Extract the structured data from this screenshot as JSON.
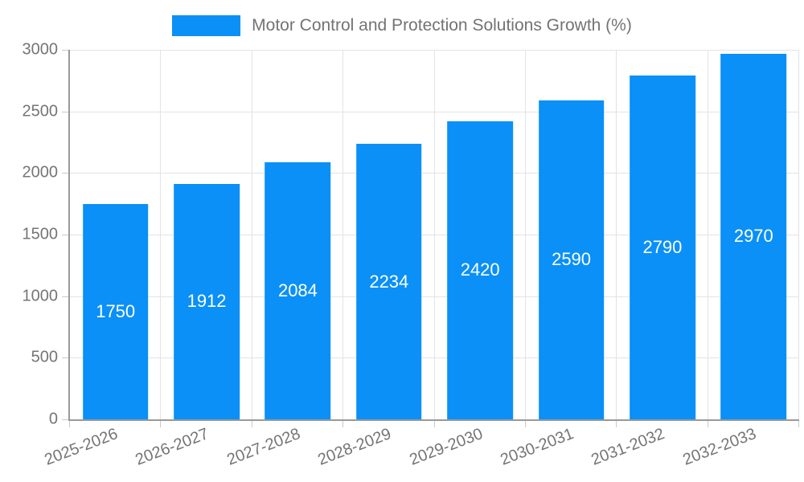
{
  "chart_data": {
    "type": "bar",
    "title": "Motor Control and Protection Solutions Growth (%)",
    "categories": [
      "2025-2026",
      "2026-2027",
      "2027-2028",
      "2028-2029",
      "2029-2030",
      "2030-2031",
      "2031-2032",
      "2032-2033"
    ],
    "values": [
      1750,
      1912,
      2084,
      2234,
      2420,
      2590,
      2790,
      2970
    ],
    "xlabel": "",
    "ylabel": "",
    "ylim": [
      0,
      3000
    ],
    "yticks": [
      0,
      500,
      1000,
      1500,
      2000,
      2500,
      3000
    ],
    "legend": {
      "label": "Motor Control and Protection Solutions Growth (%)",
      "position": "top"
    },
    "grid": true,
    "bar_width_fraction": 0.72,
    "x_label_rotation_deg": -21,
    "colors": {
      "bar": "#0a90f7",
      "bar_label": "#ffffff",
      "axis_text": "#757575",
      "legend_text": "#737373",
      "grid_line": "#e3e3e3",
      "axis_line": "#999999",
      "tick": "#c9c9c9",
      "background": "#ffffff"
    }
  }
}
